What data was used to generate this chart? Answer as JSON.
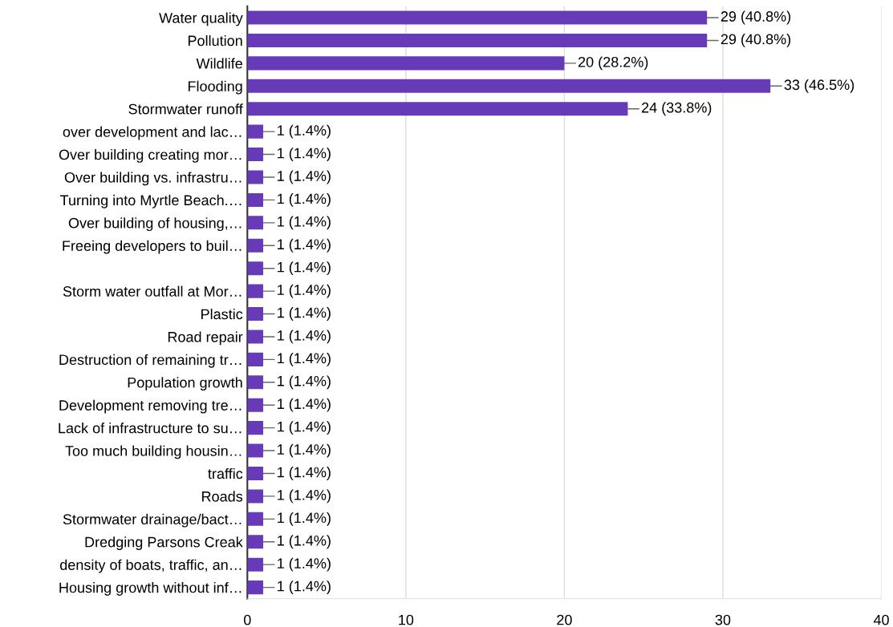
{
  "chart_data": {
    "type": "bar",
    "orientation": "horizontal",
    "color": "#673ab7",
    "categories": [
      "Water quality",
      "Pollution",
      "Wildlife",
      "Flooding",
      "Stormwater runoff",
      "over development and lac…",
      "Over building creating mor…",
      "Over building vs. infrastru…",
      "Turning into Myrtle Beach.…",
      "Over building of housing,…",
      "Freeing developers to buil…",
      null,
      "Storm water outfall at Mor…",
      "Plastic",
      "Road repair",
      "Destruction of remaining tr…",
      "Population growth",
      "Development removing tre…",
      "Lack of infrastructure to su…",
      "Too much building housin…",
      "traffic",
      "Roads",
      "Stormwater drainage/bact…",
      "Dredging Parsons Creak",
      "density of boats, traffic, an…",
      "Housing growth without inf…"
    ],
    "values": [
      29,
      29,
      20,
      33,
      24,
      1,
      1,
      1,
      1,
      1,
      1,
      1,
      1,
      1,
      1,
      1,
      1,
      1,
      1,
      1,
      1,
      1,
      1,
      1,
      1,
      1
    ],
    "value_labels": [
      "29 (40.8%)",
      "29 (40.8%)",
      "20 (28.2%)",
      "33 (46.5%)",
      "24 (33.8%)",
      "1 (1.4%)",
      "1 (1.4%)",
      "1 (1.4%)",
      "1 (1.4%)",
      "1 (1.4%)",
      "1 (1.4%)",
      "1 (1.4%)",
      "1 (1.4%)",
      "1 (1.4%)",
      "1 (1.4%)",
      "1 (1.4%)",
      "1 (1.4%)",
      "1 (1.4%)",
      "1 (1.4%)",
      "1 (1.4%)",
      "1 (1.4%)",
      "1 (1.4%)",
      "1 (1.4%)",
      "1 (1.4%)",
      "1 (1.4%)",
      "1 (1.4%)"
    ],
    "xlim": [
      0,
      40
    ],
    "xticks": [
      0,
      10,
      20,
      30,
      40
    ],
    "grid": "x"
  }
}
